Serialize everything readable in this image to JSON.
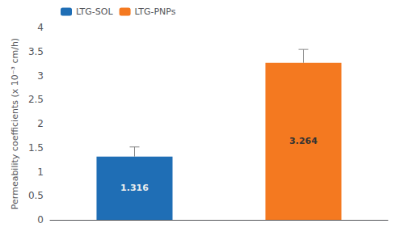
{
  "chart_data": {
    "type": "bar",
    "categories": [
      "LTG-SOL",
      "LTG-PNPs"
    ],
    "values": [
      1.316,
      3.264
    ],
    "errors": [
      0.2,
      0.28
    ],
    "colors": [
      "#1f6eb5",
      "#f47920"
    ],
    "ylabel": "Permeability coefficients (x 10⁻³ cm/h)",
    "ylim": [
      0,
      4
    ],
    "yticks": [
      0,
      0.5,
      1,
      1.5,
      2,
      2.5,
      3,
      3.5,
      4
    ],
    "data_labels": true,
    "tick_labels": "y",
    "legend": "upper left",
    "grid": false
  }
}
